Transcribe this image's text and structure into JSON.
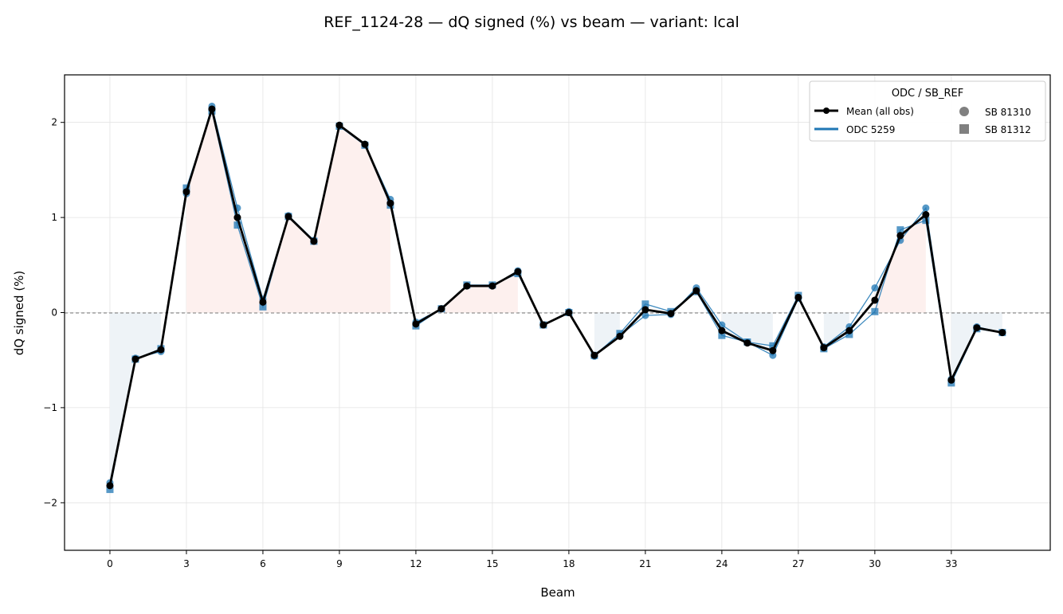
{
  "chart_data": {
    "type": "line",
    "title": "REF_1124-28  —  dQ signed (%) vs beam  —  variant: lcal",
    "xlabel": "Beam",
    "ylabel": "dQ signed (%)",
    "xlim": [
      -1.78,
      36.88
    ],
    "ylim": [
      -2.5,
      2.5
    ],
    "xticks": [
      0,
      3,
      6,
      9,
      12,
      15,
      18,
      21,
      24,
      27,
      30,
      33
    ],
    "yticks": [
      -2,
      -1,
      0,
      1,
      2
    ],
    "ytick_labels": [
      "−2",
      "−1",
      "0",
      "1",
      "2"
    ],
    "grid": true,
    "legend": {
      "title": "ODC / SB_REF",
      "placement": "top-right",
      "entries": [
        "Mean (all obs)",
        "ODC 5259",
        "SB 81310",
        "SB 81312"
      ]
    },
    "x": [
      0,
      1,
      2,
      3,
      4,
      5,
      6,
      7,
      8,
      9,
      10,
      11,
      12,
      13,
      14,
      15,
      16,
      17,
      18,
      19,
      20,
      21,
      22,
      23,
      24,
      25,
      26,
      27,
      28,
      29,
      30,
      31,
      32,
      33,
      34,
      35
    ],
    "series": [
      {
        "name": "Mean (all obs)",
        "color": "#000000",
        "values": [
          -1.82,
          -0.49,
          -0.39,
          1.27,
          2.14,
          1.0,
          0.11,
          1.01,
          0.75,
          1.97,
          1.77,
          1.15,
          -0.12,
          0.04,
          0.28,
          0.28,
          0.43,
          -0.13,
          0.0,
          -0.45,
          -0.25,
          0.03,
          -0.01,
          0.23,
          -0.19,
          -0.32,
          -0.4,
          0.16,
          -0.37,
          -0.19,
          0.13,
          0.81,
          1.03,
          -0.71,
          -0.16,
          -0.21
        ]
      },
      {
        "name": "SB 81310",
        "odc": "ODC 5259",
        "marker": "circle",
        "color": "#1f77b4",
        "values": [
          -1.79,
          -0.48,
          -0.41,
          1.25,
          2.17,
          1.1,
          0.14,
          1.02,
          0.76,
          1.97,
          1.77,
          1.19,
          -0.1,
          0.04,
          0.28,
          0.28,
          0.44,
          -0.13,
          0.01,
          -0.46,
          -0.24,
          -0.03,
          -0.02,
          0.26,
          -0.13,
          -0.31,
          -0.45,
          0.15,
          -0.36,
          -0.15,
          0.26,
          0.76,
          1.1,
          -0.7,
          -0.15,
          -0.21
        ]
      },
      {
        "name": "SB 81312",
        "odc": "ODC 5259",
        "marker": "square",
        "color": "#1f77b4",
        "values": [
          -1.86,
          -0.49,
          -0.38,
          1.31,
          2.12,
          0.92,
          0.06,
          1.01,
          0.75,
          1.96,
          1.76,
          1.13,
          -0.14,
          0.04,
          0.29,
          0.29,
          0.41,
          -0.13,
          0.0,
          -0.45,
          -0.22,
          0.09,
          0.01,
          0.22,
          -0.24,
          -0.31,
          -0.35,
          0.18,
          -0.38,
          -0.23,
          0.01,
          0.87,
          0.97,
          -0.74,
          -0.17,
          -0.21
        ]
      }
    ],
    "fill_colors": {
      "positive": "#fdf0ee",
      "negative": "#eef3f7"
    }
  }
}
